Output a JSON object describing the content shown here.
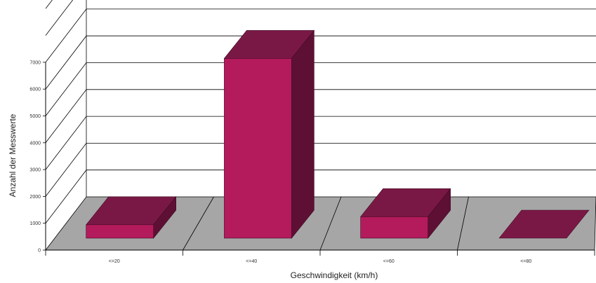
{
  "chart_data": {
    "type": "bar",
    "categories": [
      "<=20",
      "<=40",
      "<=60",
      "<=80"
    ],
    "values": [
      500,
      6700,
      800,
      0
    ],
    "xlabel": "Geschwindigkeit (km/h)",
    "ylabel": "Anzahl der Messwerte",
    "ylim": [
      0,
      7000
    ],
    "yticks": [
      0,
      1000,
      2000,
      3000,
      4000,
      5000,
      6000,
      7000
    ],
    "grid": true,
    "three_d": true,
    "colors": {
      "bar_front": "#b41b5c",
      "bar_top": "#7a1845",
      "bar_side": "#5e1034",
      "floor": "#a6a6a6",
      "grid": "#000000"
    }
  }
}
